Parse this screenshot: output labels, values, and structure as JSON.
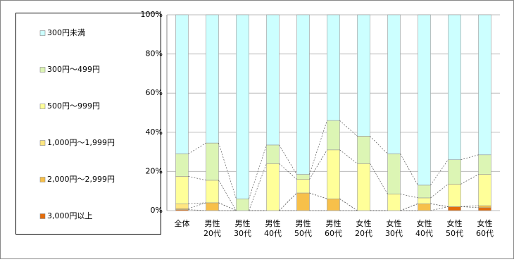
{
  "chart_data": {
    "type": "stacked_bar_100",
    "categories": [
      "全体",
      "男性\n20代",
      "男性\n30代",
      "男性\n40代",
      "男性\n50代",
      "男性\n60代",
      "女性\n20代",
      "女性\n30代",
      "女性\n40代",
      "女性\n50代",
      "女性\n60代"
    ],
    "series": [
      {
        "name": "3,000円以上",
        "color": "#e46c0a",
        "values": [
          0.5,
          0,
          0,
          0,
          0,
          0,
          0,
          0,
          0,
          2,
          1.5
        ]
      },
      {
        "name": "2,000円～2,999円",
        "color": "#f7c04a",
        "values": [
          0.5,
          4,
          0,
          0,
          9,
          6,
          0,
          0,
          3.5,
          0,
          1
        ]
      },
      {
        "name": "1,000円～1,999円",
        "color": "#ffe680",
        "values": [
          2.5,
          0,
          0,
          0,
          0,
          0,
          0,
          0,
          0,
          0,
          0
        ]
      },
      {
        "name": "500円～999円",
        "color": "#ffff99",
        "values": [
          14,
          11.5,
          0,
          24,
          7,
          25,
          24,
          8.5,
          3,
          11.5,
          16
        ]
      },
      {
        "name": "300円～499円",
        "color": "#dcf5b4",
        "values": [
          11.5,
          19,
          6,
          9.5,
          2.5,
          15,
          14,
          20.5,
          6.5,
          12.5,
          10
        ]
      },
      {
        "name": "300円未満",
        "color": "#ccffff",
        "values": [
          71,
          65.5,
          94,
          66.5,
          81.5,
          54,
          62,
          71,
          87,
          74,
          71.5
        ]
      }
    ],
    "ylim": [
      0,
      100
    ],
    "yticks": [
      {
        "value": 0,
        "label": "0%"
      },
      {
        "value": 20,
        "label": "20%"
      },
      {
        "value": 40,
        "label": "40%"
      },
      {
        "value": 60,
        "label": "60%"
      },
      {
        "value": 80,
        "label": "80%"
      },
      {
        "value": 100,
        "label": "100%"
      }
    ],
    "grid": true
  }
}
